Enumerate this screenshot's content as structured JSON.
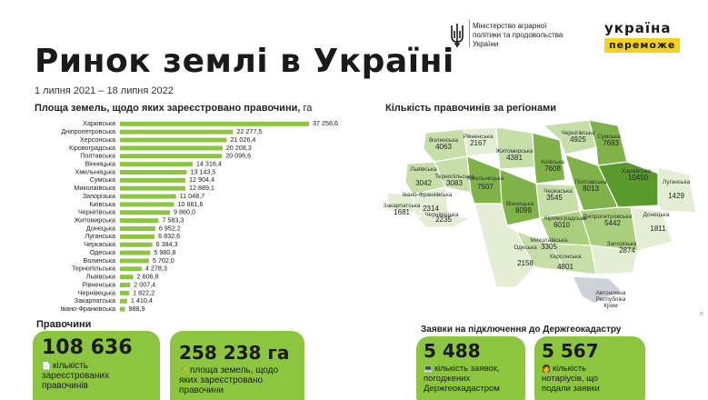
{
  "header": {
    "ministry_name": "Міністерство аграрної політики та продовольства України",
    "logo_line1": "україна",
    "logo_line2": "переможе",
    "title": "Ринок землі в Україні",
    "period": "1 липня 2021 – 18 липня 2022"
  },
  "chart_data": [
    {
      "type": "bar",
      "title": "Площа земель, щодо яких зареєстровано правочини,",
      "unit": "га",
      "categories": [
        "Харківська",
        "Дніпропетровська",
        "Херсонська",
        "Кіровоградська",
        "Полтавська",
        "Вінницька",
        "Хмельницька",
        "Сумська",
        "Миколаївська",
        "Запорізька",
        "Київська",
        "Чернігівська",
        "Житомирська",
        "Донецька",
        "Луганська",
        "Черкаська",
        "Одеська",
        "Волинська",
        "Тернопільська",
        "Львівська",
        "Рівненська",
        "Чернівецька",
        "Закарпатська",
        "Івано-Франківська"
      ],
      "values": [
        37256.6,
        22277.5,
        21026.4,
        20208.3,
        20096.6,
        14316.4,
        13143.5,
        12904.4,
        12889.1,
        11048.7,
        10661.6,
        9860.0,
        7583.3,
        6952.2,
        6832.6,
        6384.3,
        5980.8,
        5702.0,
        4278.3,
        2606.8,
        2007.4,
        1822.2,
        1410.4,
        988.9
      ],
      "value_labels": [
        "37 256,6",
        "22 277,5",
        "21 026,4",
        "20 208,3",
        "20 096,6",
        "14 316,4",
        "13 143,5",
        "12 904,4",
        "12 889,1",
        "11 048,7",
        "10 661,6",
        "9 860,0",
        "7 583,3",
        "6 952,2",
        "6 832,6",
        "6 384,3",
        "5 980,8",
        "5 702,0",
        "4 278,3",
        "2 606,8",
        "2 007,4",
        "1 822,2",
        "1 410,4",
        "988,9"
      ],
      "bar_color": "#8cc63f"
    },
    {
      "type": "heatmap",
      "title": "Кількість правочинів за регіонами",
      "regions": [
        {
          "name": "Волинська",
          "value": 4063
        },
        {
          "name": "Рівненська",
          "value": 2167
        },
        {
          "name": "Житомирська",
          "value": 4381
        },
        {
          "name": "Київська",
          "value": 7608
        },
        {
          "name": "Чернігівська",
          "value": 4925
        },
        {
          "name": "Сумська",
          "value": 7693
        },
        {
          "name": "Харківська",
          "value": 10450
        },
        {
          "name": "Луганська",
          "value": 1429
        },
        {
          "name": "Донецька",
          "value": 1811
        },
        {
          "name": "Львівська",
          "value": 3042
        },
        {
          "name": "Тернопільська",
          "value": 3083
        },
        {
          "name": "Хмельницька",
          "value": 7507
        },
        {
          "name": "Вінницька",
          "value": 8099
        },
        {
          "name": "Черкаська",
          "value": 3545
        },
        {
          "name": "Полтавська",
          "value": 8013
        },
        {
          "name": "Дніпропетровська",
          "value": 5442
        },
        {
          "name": "Запорізька",
          "value": 2874
        },
        {
          "name": "Закарпатська",
          "value": 1681
        },
        {
          "name": "Івано-Франківська",
          "value": 2314
        },
        {
          "name": "Чернівецька",
          "value": 2235
        },
        {
          "name": "Кіровоградська",
          "value": 6010
        },
        {
          "name": "Миколаївська",
          "value": 3305
        },
        {
          "name": "Одеська",
          "value": 2158
        },
        {
          "name": "Херсонська",
          "value": 4801
        },
        {
          "name": "Автономна Республіка Крим",
          "value": null
        }
      ],
      "value_labels": [
        "4063",
        "2167",
        "4381",
        "7608",
        "4925",
        "7693",
        "10450",
        "1429",
        "1811",
        "3042",
        "3083",
        "7507",
        "8099",
        "3545",
        "8013",
        "5442",
        "2874",
        "1681",
        "2314",
        "2235",
        "6010",
        "3305",
        "2158",
        "4801"
      ],
      "color_scale": [
        "#e3eed5",
        "#c6dfa8",
        "#a9cf7c",
        "#7fb34a",
        "#5a9a2c"
      ]
    }
  ],
  "stats": {
    "section_label": "Правочини",
    "deals_count": "108 636",
    "deals_label_1": "кількість",
    "deals_label_2": "зареєстрованих",
    "deals_label_3": "правочинів",
    "area": "258 238 га",
    "area_label_1": "площа земель, щодо",
    "area_label_2": "яких зареєстровано",
    "area_label_3": "правочини",
    "geo_heading": "Заявки на підключення до Держгеокадастру",
    "applications": "5 488",
    "applications_label_1": "кількість заявок,",
    "applications_label_2": "погоджених",
    "applications_label_3": "Держгеокадастром",
    "notaries": "5 567",
    "notaries_label_1": "кількість",
    "notaries_label_2": "нотаріусів, що",
    "notaries_label_3": "подали заявки"
  },
  "crimea_label_1": "Автономна",
  "crimea_label_2": "Республіка",
  "crimea_label_3": "Крим",
  "side_note": "©",
  "colors": {
    "accent_green": "#8cc63f",
    "flag_yellow": "#f5d31a",
    "crimea_gray": "#cdd1d8"
  }
}
